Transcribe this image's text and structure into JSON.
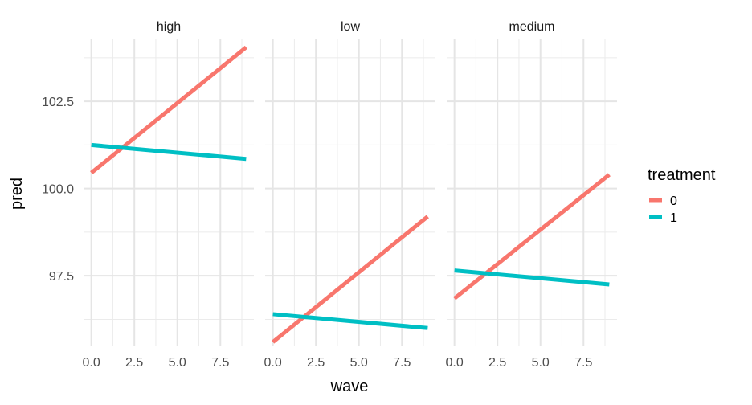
{
  "chart_data": {
    "type": "line",
    "xlabel": "wave",
    "ylabel": "pred",
    "xlim": [
      -0.45,
      9.45
    ],
    "ylim": [
      95.5,
      104.3
    ],
    "x_ticks": [
      0.0,
      2.5,
      5.0,
      7.5
    ],
    "x_tick_labels": [
      "0.0",
      "2.5",
      "5.0",
      "7.5"
    ],
    "y_ticks": [
      97.5,
      100.0,
      102.5
    ],
    "y_tick_labels": [
      "97.5",
      "100.0",
      "102.5"
    ],
    "y_minor": [
      96.25,
      98.75,
      101.25,
      103.75
    ],
    "x_minor": [
      1.25,
      3.75,
      6.25,
      8.75
    ],
    "legend": {
      "title": "treatment",
      "position": "right",
      "entries": [
        {
          "label": "0",
          "color": "#F8766D"
        },
        {
          "label": "1",
          "color": "#00BFC4"
        }
      ]
    },
    "facets": [
      {
        "label": "high",
        "series": [
          {
            "name": "0",
            "color": "#F8766D",
            "x": [
              0,
              9
            ],
            "y": [
              100.45,
              104.05
            ]
          },
          {
            "name": "1",
            "color": "#00BFC4",
            "x": [
              0,
              9
            ],
            "y": [
              101.25,
              100.85
            ]
          }
        ]
      },
      {
        "label": "low",
        "series": [
          {
            "name": "0",
            "color": "#F8766D",
            "x": [
              0,
              9
            ],
            "y": [
              95.6,
              99.2
            ]
          },
          {
            "name": "1",
            "color": "#00BFC4",
            "x": [
              0,
              9
            ],
            "y": [
              96.4,
              96.0
            ]
          }
        ]
      },
      {
        "label": "medium",
        "series": [
          {
            "name": "0",
            "color": "#F8766D",
            "x": [
              0,
              9
            ],
            "y": [
              96.85,
              100.4
            ]
          },
          {
            "name": "1",
            "color": "#00BFC4",
            "x": [
              0,
              9
            ],
            "y": [
              97.65,
              97.25
            ]
          }
        ]
      }
    ]
  }
}
